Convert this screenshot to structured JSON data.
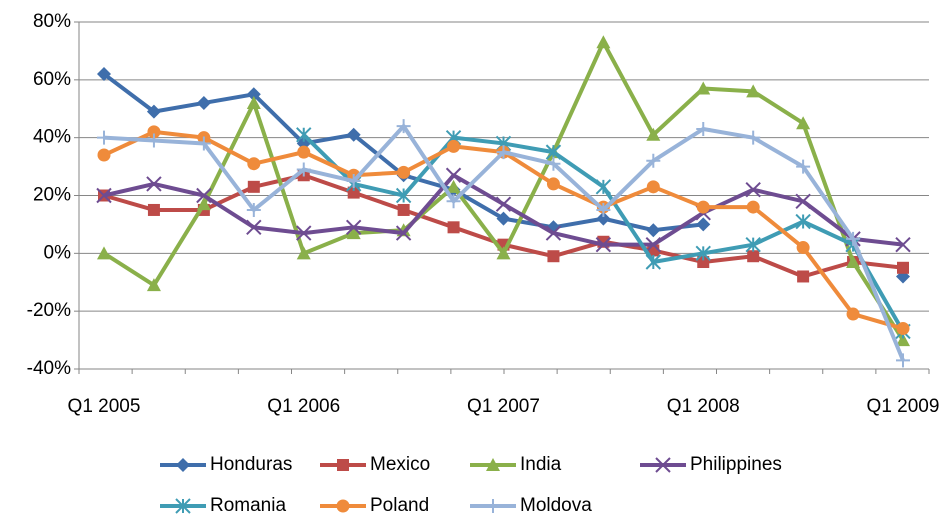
{
  "chart_data": {
    "type": "line",
    "categories": [
      "Q1 2005",
      null,
      null,
      null,
      "Q1 2006",
      null,
      null,
      null,
      "Q1 2007",
      null,
      null,
      null,
      "Q1 2008",
      null,
      null,
      null,
      "Q1 2009"
    ],
    "ylim": [
      -40,
      80
    ],
    "yticks": [
      {
        "value": -40,
        "label": "-40%"
      },
      {
        "value": -20,
        "label": "-20%"
      },
      {
        "value": 0,
        "label": "0%"
      },
      {
        "value": 20,
        "label": "20%"
      },
      {
        "value": 40,
        "label": "40%"
      },
      {
        "value": 60,
        "label": "60%"
      },
      {
        "value": 80,
        "label": "80%"
      }
    ],
    "grid": true,
    "legend": "bottom",
    "series": [
      {
        "name": "Honduras",
        "color": "#3f6eab",
        "marker": "diamond",
        "values": [
          62,
          49,
          52,
          55,
          38,
          41,
          27,
          22,
          12,
          9,
          12,
          8,
          10,
          null,
          null,
          null,
          -8
        ]
      },
      {
        "name": "Mexico",
        "color": "#bd4b48",
        "marker": "square",
        "values": [
          20,
          15,
          15,
          23,
          27,
          21,
          15,
          9,
          3,
          -1,
          4,
          1,
          -3,
          -1,
          -8,
          -3,
          -5
        ]
      },
      {
        "name": "India",
        "color": "#8ab04a",
        "marker": "triangle",
        "values": [
          0,
          -11,
          17,
          52,
          0,
          7,
          8,
          23,
          0,
          35,
          73,
          41,
          57,
          56,
          45,
          -3,
          -30
        ]
      },
      {
        "name": "Philippines",
        "color": "#6e4c91",
        "marker": "x",
        "values": [
          20,
          24,
          20,
          9,
          7,
          9,
          7,
          27,
          17,
          7,
          3,
          3,
          14,
          22,
          18,
          5,
          3
        ]
      },
      {
        "name": "Romania",
        "color": "#3f9cb4",
        "marker": "star",
        "values": [
          null,
          null,
          null,
          null,
          41,
          24,
          20,
          40,
          38,
          35,
          23,
          -3,
          0,
          3,
          11,
          3,
          -27
        ]
      },
      {
        "name": "Poland",
        "color": "#ef8b3b",
        "marker": "circle",
        "values": [
          34,
          42,
          40,
          31,
          35,
          27,
          28,
          37,
          35,
          24,
          16,
          23,
          16,
          16,
          2,
          -21,
          -26
        ]
      },
      {
        "name": "Moldova",
        "color": "#98b3d9",
        "marker": "plus",
        "values": [
          40,
          39,
          38,
          15,
          29,
          25,
          44,
          18,
          35,
          31,
          15,
          32,
          43,
          40,
          30,
          5,
          -37
        ]
      }
    ]
  }
}
